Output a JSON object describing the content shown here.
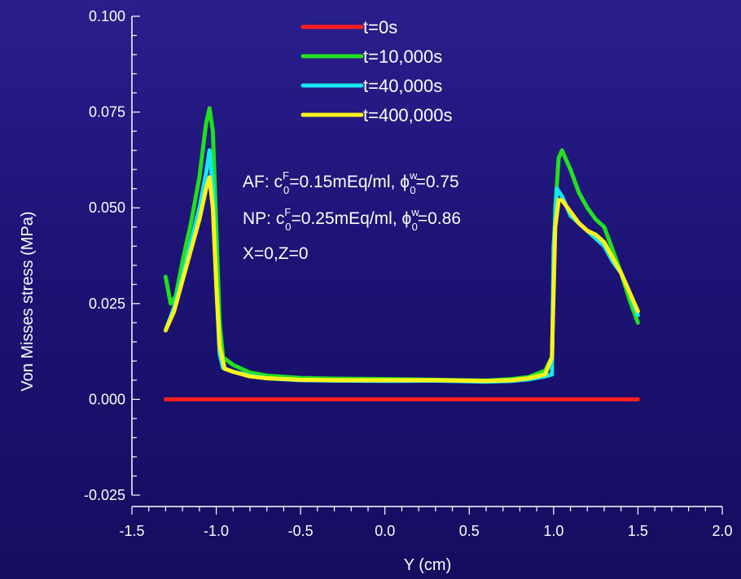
{
  "chart_data": {
    "type": "line",
    "title": "",
    "xlabel": "Y (cm)",
    "ylabel": "Von Misses stress (MPa)",
    "xlim": [
      -1.5,
      2.0
    ],
    "ylim": [
      -0.025,
      0.1
    ],
    "x_ticks": [
      -1.5,
      -1.0,
      -0.5,
      0.0,
      0.5,
      1.0,
      1.5,
      2.0
    ],
    "x_tick_labels": [
      "-1.5",
      "-1.0",
      "-0.5",
      "0.0",
      "0.5",
      "1.0",
      "1.5",
      "2.0"
    ],
    "y_ticks": [
      -0.025,
      0.0,
      0.025,
      0.05,
      0.075,
      0.1
    ],
    "y_tick_labels": [
      "-0.025",
      "0.000",
      "0.025",
      "0.050",
      "0.075",
      "0.100"
    ],
    "grid": false,
    "legend_position": "top-center",
    "series": [
      {
        "name": "t=0s",
        "color": "#ff1f1f",
        "points": [
          [
            -1.3,
            0.0
          ],
          [
            1.5,
            0.0
          ]
        ]
      },
      {
        "name": "t=10,000s",
        "color": "#22e01e",
        "points": [
          [
            -1.3,
            0.032
          ],
          [
            -1.27,
            0.025
          ],
          [
            -1.24,
            0.027
          ],
          [
            -1.2,
            0.036
          ],
          [
            -1.15,
            0.046
          ],
          [
            -1.1,
            0.058
          ],
          [
            -1.06,
            0.072
          ],
          [
            -1.04,
            0.076
          ],
          [
            -1.02,
            0.07
          ],
          [
            -1.0,
            0.045
          ],
          [
            -0.98,
            0.02
          ],
          [
            -0.96,
            0.011
          ],
          [
            -0.9,
            0.009
          ],
          [
            -0.8,
            0.007
          ],
          [
            -0.7,
            0.0062
          ],
          [
            -0.5,
            0.0056
          ],
          [
            -0.3,
            0.0054
          ],
          [
            0.0,
            0.0053
          ],
          [
            0.3,
            0.0051
          ],
          [
            0.6,
            0.0049
          ],
          [
            0.75,
            0.0053
          ],
          [
            0.85,
            0.0058
          ],
          [
            0.95,
            0.0075
          ],
          [
            0.99,
            0.011
          ],
          [
            1.01,
            0.05
          ],
          [
            1.03,
            0.063
          ],
          [
            1.05,
            0.065
          ],
          [
            1.1,
            0.06
          ],
          [
            1.15,
            0.054
          ],
          [
            1.2,
            0.05
          ],
          [
            1.25,
            0.047
          ],
          [
            1.3,
            0.045
          ],
          [
            1.35,
            0.039
          ],
          [
            1.4,
            0.033
          ],
          [
            1.45,
            0.026
          ],
          [
            1.5,
            0.02
          ]
        ]
      },
      {
        "name": "t=40,000s",
        "color": "#17e6f0",
        "points": [
          [
            -1.3,
            0.018
          ],
          [
            -1.25,
            0.024
          ],
          [
            -1.2,
            0.032
          ],
          [
            -1.15,
            0.041
          ],
          [
            -1.1,
            0.05
          ],
          [
            -1.06,
            0.059
          ],
          [
            -1.04,
            0.065
          ],
          [
            -1.02,
            0.055
          ],
          [
            -1.0,
            0.03
          ],
          [
            -0.98,
            0.012
          ],
          [
            -0.96,
            0.0082
          ],
          [
            -0.9,
            0.0072
          ],
          [
            -0.8,
            0.0062
          ],
          [
            -0.7,
            0.0055
          ],
          [
            -0.5,
            0.005
          ],
          [
            -0.3,
            0.0049
          ],
          [
            0.0,
            0.0048
          ],
          [
            0.3,
            0.0049
          ],
          [
            0.6,
            0.0046
          ],
          [
            0.75,
            0.0048
          ],
          [
            0.85,
            0.0052
          ],
          [
            0.95,
            0.006
          ],
          [
            0.99,
            0.0065
          ],
          [
            1.0,
            0.04
          ],
          [
            1.02,
            0.055
          ],
          [
            1.05,
            0.053
          ],
          [
            1.1,
            0.048
          ],
          [
            1.15,
            0.046
          ],
          [
            1.2,
            0.044
          ],
          [
            1.25,
            0.042
          ],
          [
            1.3,
            0.04
          ],
          [
            1.35,
            0.036
          ],
          [
            1.4,
            0.033
          ],
          [
            1.45,
            0.028
          ],
          [
            1.5,
            0.022
          ]
        ]
      },
      {
        "name": "t=400,000s",
        "color": "#fff21a",
        "points": [
          [
            -1.3,
            0.018
          ],
          [
            -1.25,
            0.023
          ],
          [
            -1.2,
            0.031
          ],
          [
            -1.15,
            0.039
          ],
          [
            -1.1,
            0.047
          ],
          [
            -1.06,
            0.055
          ],
          [
            -1.04,
            0.058
          ],
          [
            -1.02,
            0.05
          ],
          [
            -1.0,
            0.03
          ],
          [
            -0.98,
            0.014
          ],
          [
            -0.95,
            0.008
          ],
          [
            -0.9,
            0.0072
          ],
          [
            -0.8,
            0.006
          ],
          [
            -0.7,
            0.0055
          ],
          [
            -0.5,
            0.0051
          ],
          [
            -0.3,
            0.005
          ],
          [
            0.0,
            0.005
          ],
          [
            0.3,
            0.005
          ],
          [
            0.6,
            0.0048
          ],
          [
            0.75,
            0.005
          ],
          [
            0.85,
            0.0055
          ],
          [
            0.95,
            0.0065
          ],
          [
            0.99,
            0.011
          ],
          [
            1.01,
            0.045
          ],
          [
            1.03,
            0.052
          ],
          [
            1.05,
            0.052
          ],
          [
            1.1,
            0.049
          ],
          [
            1.15,
            0.046
          ],
          [
            1.2,
            0.044
          ],
          [
            1.25,
            0.043
          ],
          [
            1.3,
            0.041
          ],
          [
            1.35,
            0.037
          ],
          [
            1.4,
            0.033
          ],
          [
            1.45,
            0.028
          ],
          [
            1.5,
            0.023
          ]
        ]
      }
    ],
    "annotations": {
      "af_label": "AF: c",
      "af_sup": "F",
      "af_sub": "0",
      "af_mid": "=0.15mEq/ml, ",
      "af_phi": "ϕ",
      "af_phi_sup": "w",
      "af_phi_sub": "0",
      "af_end": "=0.75",
      "np_label": "NP: c",
      "np_sup": "F",
      "np_sub": "0",
      "np_mid": "=0.25mEq/ml, ",
      "np_phi": "ϕ",
      "np_phi_sup": "w",
      "np_phi_sub": "0",
      "np_end": "=0.86",
      "position": "X=0,Z=0"
    }
  }
}
